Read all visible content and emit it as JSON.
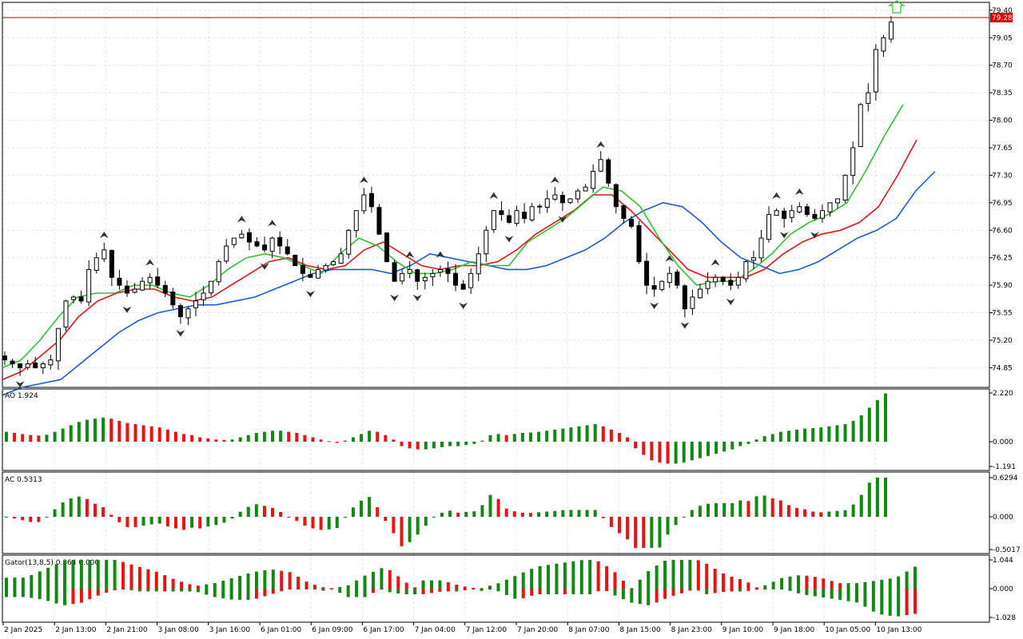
{
  "colors": {
    "background": "#ffffff",
    "grid": "#e4e4e4",
    "candle_bull_body": "#ffffff",
    "candle_bear_body": "#000000",
    "candle_outline": "#000000",
    "alligator_jaw": "#1a5dd0",
    "alligator_teeth": "#e01515",
    "alligator_lips": "#2ec32e",
    "histogram_up": "#118811",
    "histogram_down": "#ee1111",
    "price_line": "#b00000",
    "price_label_bg": "#d40000",
    "signal_arrow": "#2ec32e"
  },
  "main_pane": {
    "current_price": "79.28",
    "price_ticks": [
      "79.40",
      "79.05",
      "78.70",
      "78.35",
      "78.00",
      "77.65",
      "77.30",
      "76.95",
      "76.60",
      "76.25",
      "75.90",
      "75.55",
      "75.20",
      "74.85"
    ]
  },
  "time_axis": {
    "labels": [
      "2 Jan 2025",
      "2 Jan 13:00",
      "2 Jan 21:00",
      "3 Jan 08:00",
      "3 Jan 16:00",
      "6 Jan 01:00",
      "6 Jan 09:00",
      "6 Jan 17:00",
      "7 Jan 04:00",
      "7 Jan 12:00",
      "7 Jan 20:00",
      "8 Jan 07:00",
      "8 Jan 15:00",
      "8 Jan 23:00",
      "9 Jan 10:00",
      "9 Jan 18:00",
      "10 Jan 05:00",
      "10 Jan 13:00"
    ]
  },
  "ao_pane": {
    "label": "AO 1.924",
    "ticks": [
      "2.220",
      "0.000",
      "-1.191"
    ]
  },
  "ac_pane": {
    "label": "AC 0.5313",
    "ticks": [
      "0.6294",
      "0.000",
      "-0.5017"
    ]
  },
  "gator_pane": {
    "label": "Gator(13,8,5) 0.864 0.000",
    "ticks": [
      "1.044",
      "0.000",
      "-1.028"
    ]
  },
  "chart_data": {
    "type": "candlestick",
    "price_range": [
      74.6,
      79.5
    ],
    "x_labels": [
      "2 Jan 2025",
      "2 Jan 13:00",
      "2 Jan 21:00",
      "3 Jan 08:00",
      "3 Jan 16:00",
      "6 Jan 01:00",
      "6 Jan 09:00",
      "6 Jan 17:00",
      "7 Jan 04:00",
      "7 Jan 12:00",
      "7 Jan 20:00",
      "8 Jan 07:00",
      "8 Jan 15:00",
      "8 Jan 23:00",
      "9 Jan 10:00",
      "9 Jan 18:00",
      "10 Jan 05:00",
      "10 Jan 13:00"
    ],
    "close_path": [
      74.95,
      74.9,
      74.85,
      74.9,
      74.85,
      74.9,
      74.95,
      75.35,
      75.7,
      75.75,
      75.7,
      76.1,
      76.25,
      76.35,
      76.0,
      75.9,
      75.8,
      75.85,
      75.95,
      76.0,
      75.9,
      75.8,
      75.65,
      75.5,
      75.6,
      75.7,
      75.8,
      75.95,
      76.2,
      76.4,
      76.5,
      76.55,
      76.45,
      76.4,
      76.35,
      76.5,
      76.4,
      76.3,
      76.15,
      76.05,
      76.0,
      76.1,
      76.15,
      76.2,
      76.3,
      76.6,
      76.85,
      77.05,
      76.9,
      76.55,
      76.2,
      75.95,
      76.05,
      76.1,
      75.95,
      76.0,
      76.05,
      76.1,
      76.05,
      75.9,
      75.85,
      76.05,
      76.3,
      76.6,
      76.85,
      76.8,
      76.7,
      76.85,
      76.75,
      76.9,
      76.9,
      77.0,
      77.05,
      76.95,
      77.0,
      77.1,
      77.15,
      77.35,
      77.5,
      77.2,
      76.9,
      76.75,
      76.65,
      76.2,
      75.9,
      75.85,
      75.95,
      76.05,
      75.9,
      75.6,
      75.75,
      75.85,
      75.95,
      76.0,
      75.95,
      75.9,
      76.0,
      76.2,
      76.25,
      76.5,
      76.8,
      76.85,
      76.75,
      76.85,
      76.9,
      76.8,
      76.75,
      76.85,
      76.95,
      77.0,
      77.3,
      77.65,
      78.2,
      78.35,
      78.9,
      79.05,
      79.25
    ],
    "jaw_path": [
      74.5,
      74.6,
      74.65,
      74.7,
      74.9,
      75.1,
      75.3,
      75.45,
      75.55,
      75.6,
      75.65,
      75.65,
      75.7,
      75.75,
      75.85,
      75.95,
      76.05,
      76.1,
      76.1,
      76.1,
      76.05,
      76.15,
      76.3,
      76.25,
      76.2,
      76.15,
      76.1,
      76.1,
      76.15,
      76.25,
      76.35,
      76.5,
      76.7,
      76.85,
      76.95,
      76.9,
      76.7,
      76.45,
      76.25,
      76.15,
      76.05,
      76.1,
      76.2,
      76.35,
      76.5,
      76.6,
      76.75,
      77.1,
      77.35
    ],
    "teeth_path": [
      74.7,
      74.8,
      75.0,
      75.2,
      75.5,
      75.7,
      75.8,
      75.85,
      75.85,
      75.75,
      75.7,
      75.75,
      75.9,
      76.05,
      76.2,
      76.25,
      76.15,
      76.1,
      76.15,
      76.35,
      76.45,
      76.3,
      76.15,
      76.1,
      76.15,
      76.15,
      76.2,
      76.35,
      76.55,
      76.7,
      76.85,
      77.05,
      77.05,
      76.85,
      76.6,
      76.35,
      76.1,
      76.0,
      76.0,
      76.0,
      76.1,
      76.3,
      76.45,
      76.55,
      76.6,
      76.7,
      76.9,
      77.3,
      77.75
    ],
    "lips_path": [
      74.85,
      74.95,
      75.2,
      75.5,
      75.75,
      75.8,
      75.8,
      75.9,
      75.9,
      75.8,
      75.75,
      75.9,
      76.1,
      76.25,
      76.3,
      76.25,
      76.15,
      76.05,
      76.3,
      76.5,
      76.4,
      76.2,
      76.05,
      76.05,
      76.1,
      76.2,
      76.15,
      76.15,
      76.45,
      76.6,
      76.75,
      76.95,
      77.15,
      77.1,
      76.9,
      76.5,
      76.15,
      75.9,
      75.95,
      75.95,
      76.1,
      76.3,
      76.55,
      76.7,
      76.8,
      76.95,
      77.35,
      77.8,
      78.2
    ],
    "ao_values": [
      0.45,
      0.4,
      0.35,
      0.3,
      0.28,
      0.32,
      0.45,
      0.6,
      0.75,
      0.9,
      1.0,
      1.05,
      1.1,
      1.05,
      0.95,
      0.85,
      0.8,
      0.75,
      0.7,
      0.65,
      0.55,
      0.45,
      0.35,
      0.3,
      0.2,
      0.15,
      0.1,
      0.08,
      0.1,
      0.2,
      0.3,
      0.4,
      0.45,
      0.5,
      0.5,
      0.45,
      0.4,
      0.3,
      0.2,
      0.1,
      0.02,
      -0.05,
      0.05,
      0.2,
      0.35,
      0.5,
      0.45,
      0.3,
      0.1,
      -0.2,
      -0.3,
      -0.35,
      -0.35,
      -0.3,
      -0.25,
      -0.2,
      -0.2,
      -0.15,
      -0.1,
      0.05,
      0.3,
      0.35,
      0.3,
      0.35,
      0.4,
      0.42,
      0.45,
      0.5,
      0.55,
      0.6,
      0.65,
      0.7,
      0.75,
      0.8,
      0.7,
      0.55,
      0.4,
      0.2,
      -0.3,
      -0.6,
      -0.85,
      -0.95,
      -1.0,
      -1.0,
      -0.95,
      -0.85,
      -0.75,
      -0.65,
      -0.55,
      -0.45,
      -0.35,
      -0.2,
      -0.1,
      0.1,
      0.25,
      0.35,
      0.45,
      0.5,
      0.55,
      0.6,
      0.62,
      0.65,
      0.7,
      0.75,
      0.8,
      0.95,
      1.2,
      1.55,
      1.9,
      2.2
    ]
  }
}
